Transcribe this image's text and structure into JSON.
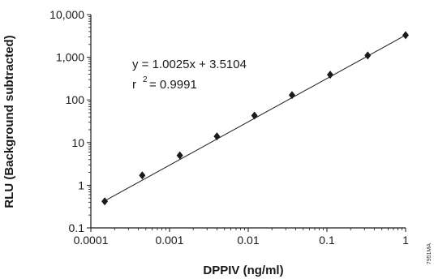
{
  "chart_data": {
    "type": "scatter",
    "xlabel": "DPPIV (ng/ml)",
    "ylabel": "RLU (Background subtracted)",
    "x_scale": "log",
    "y_scale": "log",
    "xlim": [
      0.0001,
      1
    ],
    "ylim": [
      0.1,
      10000
    ],
    "x_ticks": [
      "0.0001",
      "0.001",
      "0.01",
      "0.1",
      "1"
    ],
    "y_ticks": [
      "0.1",
      "1",
      "10",
      "100",
      "1,000",
      "10,000"
    ],
    "grid": false,
    "legend": "none",
    "series": [
      {
        "marker": "diamond",
        "x": [
          0.00015,
          0.00045,
          0.00135,
          0.004,
          0.012,
          0.036,
          0.11,
          0.33,
          1.0
        ],
        "y": [
          0.42,
          1.7,
          5.0,
          14,
          43,
          130,
          390,
          1100,
          3300
        ]
      }
    ],
    "trendline": {
      "x": [
        0.00015,
        1.0
      ],
      "y": [
        0.43,
        3300
      ]
    },
    "annotation": {
      "equation": "y = 1.0025x + 3.5104",
      "r_label": "r",
      "r_exp": "2",
      "r_value": "= 0.9991"
    },
    "code": "7951MA",
    "colors": {
      "mark": "#1a1a1a",
      "axis": "#1a1a1a"
    }
  }
}
